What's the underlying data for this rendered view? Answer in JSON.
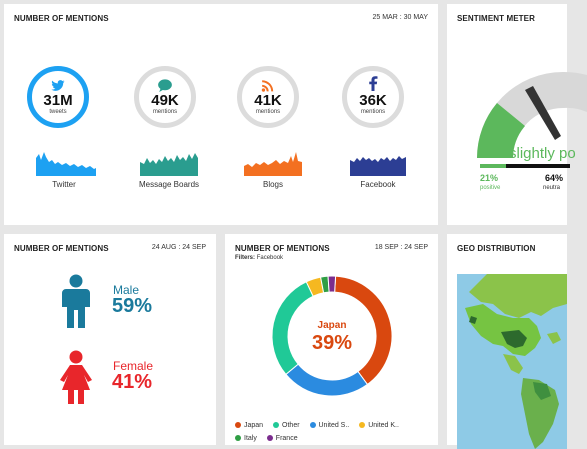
{
  "channels_card": {
    "title": "NUMBER OF MENTIONS",
    "date": "25 MAR : 30 MAY",
    "channels": [
      {
        "value": "31M",
        "unit": "tweets",
        "label": "Twitter",
        "icon": "twitter-bird-icon",
        "color": "#1da1f2"
      },
      {
        "value": "49K",
        "unit": "mentions",
        "label": "Message Boards",
        "icon": "speech-bubble-icon",
        "color": "#2a9d8f"
      },
      {
        "value": "41K",
        "unit": "mentions",
        "label": "Blogs",
        "icon": "rss-icon",
        "color": "#f37021"
      },
      {
        "value": "36K",
        "unit": "mentions",
        "label": "Facebook",
        "icon": "facebook-f-icon",
        "color": "#2c3e94"
      }
    ]
  },
  "sentiment_card": {
    "title": "SENTIMENT METER",
    "status": "slightly po",
    "positive_pct": "21%",
    "positive_label": "positive",
    "neutral_pct": "64%",
    "neutral_label": "neutra",
    "colors": {
      "positive": "#5cb85c",
      "neutral": "#111111",
      "gauge_bg": "#d8d8d8"
    }
  },
  "gender_card": {
    "title": "NUMBER OF MENTIONS",
    "date": "24 AUG : 24 SEP",
    "male_label": "Male",
    "male_pct": "59%",
    "female_label": "Female",
    "female_pct": "41%",
    "colors": {
      "male": "#1a7a9c",
      "female": "#e8262b"
    }
  },
  "country_card": {
    "title": "NUMBER OF MENTIONS",
    "date": "18 SEP : 24 SEP",
    "filter_label": "Filters:",
    "filter_value": "Facebook",
    "center_label": "Japan",
    "center_value": "39%",
    "legend": [
      {
        "label": "Japan",
        "color": "#d9480f"
      },
      {
        "label": "Other",
        "color": "#20c997"
      },
      {
        "label": "United S..",
        "color": "#2b8be0"
      },
      {
        "label": "United K..",
        "color": "#f5b820"
      },
      {
        "label": "Italy",
        "color": "#2f9e44"
      },
      {
        "label": "France",
        "color": "#7b2d8e"
      }
    ]
  },
  "geo_card": {
    "title": "GEO DISTRIBUTION"
  },
  "chart_data": {
    "type": "pie",
    "categories": [
      "Japan",
      "United S..",
      "Other",
      "United K..",
      "Italy",
      "France"
    ],
    "values": [
      39,
      24,
      29,
      4,
      2,
      2
    ],
    "title": "",
    "colors": [
      "#d9480f",
      "#2b8be0",
      "#20c997",
      "#f5b820",
      "#2f9e44",
      "#7b2d8e"
    ]
  }
}
